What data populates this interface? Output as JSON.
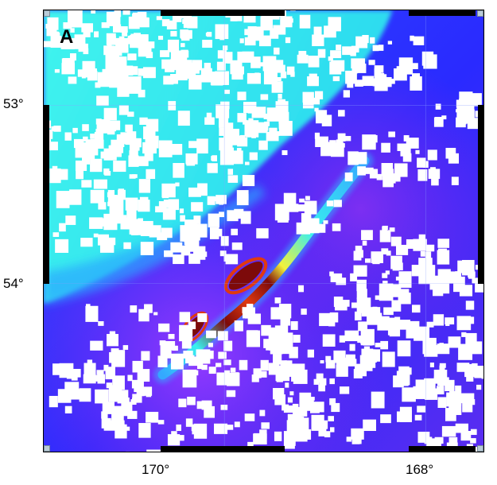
{
  "panel_label": "A",
  "latitude_labels": [
    "53°",
    "54°"
  ],
  "longitude_labels": [
    "170°",
    "168°"
  ],
  "colors": {
    "deep_blue": "#2c2cff",
    "violet": "#7a24e8",
    "purple": "#9a3cff",
    "cyan": "#38f0ee",
    "light_blue": "#34a8ff",
    "yellow": "#f2f23a",
    "orange_red": "#e03a10",
    "dark_red": "#7d0a0a",
    "cloud_white": "#ffffff"
  },
  "icons": {
    "cloud_mask": "white-cloud-patches",
    "plume": "volcanic-plume-streak"
  }
}
